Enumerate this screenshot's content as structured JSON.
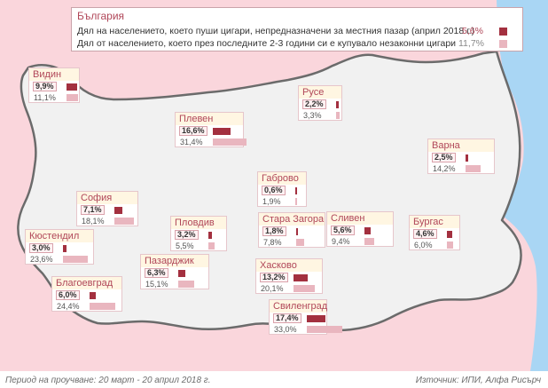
{
  "legend": {
    "title": "България",
    "line1": "Дял на населението, което пуши цигари, непредназначени за местния пазар (април 2018 г.)",
    "line2": "Дял от населението, което през последните 2-3 години си е купувало незаконни цигари",
    "value1": "5,6%",
    "value2": "11,7%",
    "value1_num": 5.6,
    "value2_num": 11.7
  },
  "colors": {
    "background": "#fad6dc",
    "sea": "#a9d6f4",
    "bulgaria": "#f1f1f1",
    "accent": "#b04658",
    "bar_dark": "#a3303f",
    "bar_light": "#e9b6bf"
  },
  "regions": [
    {
      "name": "Видин",
      "v1": "9,9%",
      "v2": "11,1%",
      "n1": 9.9,
      "n2": 11.1
    },
    {
      "name": "Русе",
      "v1": "2,2%",
      "v2": "3,3%",
      "n1": 2.2,
      "n2": 3.3
    },
    {
      "name": "Плевен",
      "v1": "16,6%",
      "v2": "31,4%",
      "n1": 16.6,
      "n2": 31.4
    },
    {
      "name": "Варна",
      "v1": "2,5%",
      "v2": "14,2%",
      "n1": 2.5,
      "n2": 14.2
    },
    {
      "name": "Габрово",
      "v1": "0,6%",
      "v2": "1,9%",
      "n1": 0.6,
      "n2": 1.9
    },
    {
      "name": "София",
      "v1": "7,1%",
      "v2": "18,1%",
      "n1": 7.1,
      "n2": 18.1
    },
    {
      "name": "Пловдив",
      "v1": "3,2%",
      "v2": "5,5%",
      "n1": 3.2,
      "n2": 5.5
    },
    {
      "name": "Стара Загора",
      "v1": "1,8%",
      "v2": "7,8%",
      "n1": 1.8,
      "n2": 7.8
    },
    {
      "name": "Сливен",
      "v1": "5,6%",
      "v2": "9,4%",
      "n1": 5.6,
      "n2": 9.4
    },
    {
      "name": "Бургас",
      "v1": "4,6%",
      "v2": "6,0%",
      "n1": 4.6,
      "n2": 6.0
    },
    {
      "name": "Кюстендил",
      "v1": "3,0%",
      "v2": "23,6%",
      "n1": 3.0,
      "n2": 23.6
    },
    {
      "name": "Пазарджик",
      "v1": "6,3%",
      "v2": "15,1%",
      "n1": 6.3,
      "n2": 15.1
    },
    {
      "name": "Благоевград",
      "v1": "6,0%",
      "v2": "24,4%",
      "n1": 6.0,
      "n2": 24.4
    },
    {
      "name": "Хасково",
      "v1": "13,2%",
      "v2": "20,1%",
      "n1": 13.2,
      "n2": 20.1
    },
    {
      "name": "Свиленград",
      "v1": "17,4%",
      "v2": "33,0%",
      "n1": 17.4,
      "n2": 33.0
    }
  ],
  "footer": {
    "period": "Период на проучване: 20 март - 20 април 2018 г.",
    "source": "Източник: ИПИ, Алфа Рисърч"
  }
}
